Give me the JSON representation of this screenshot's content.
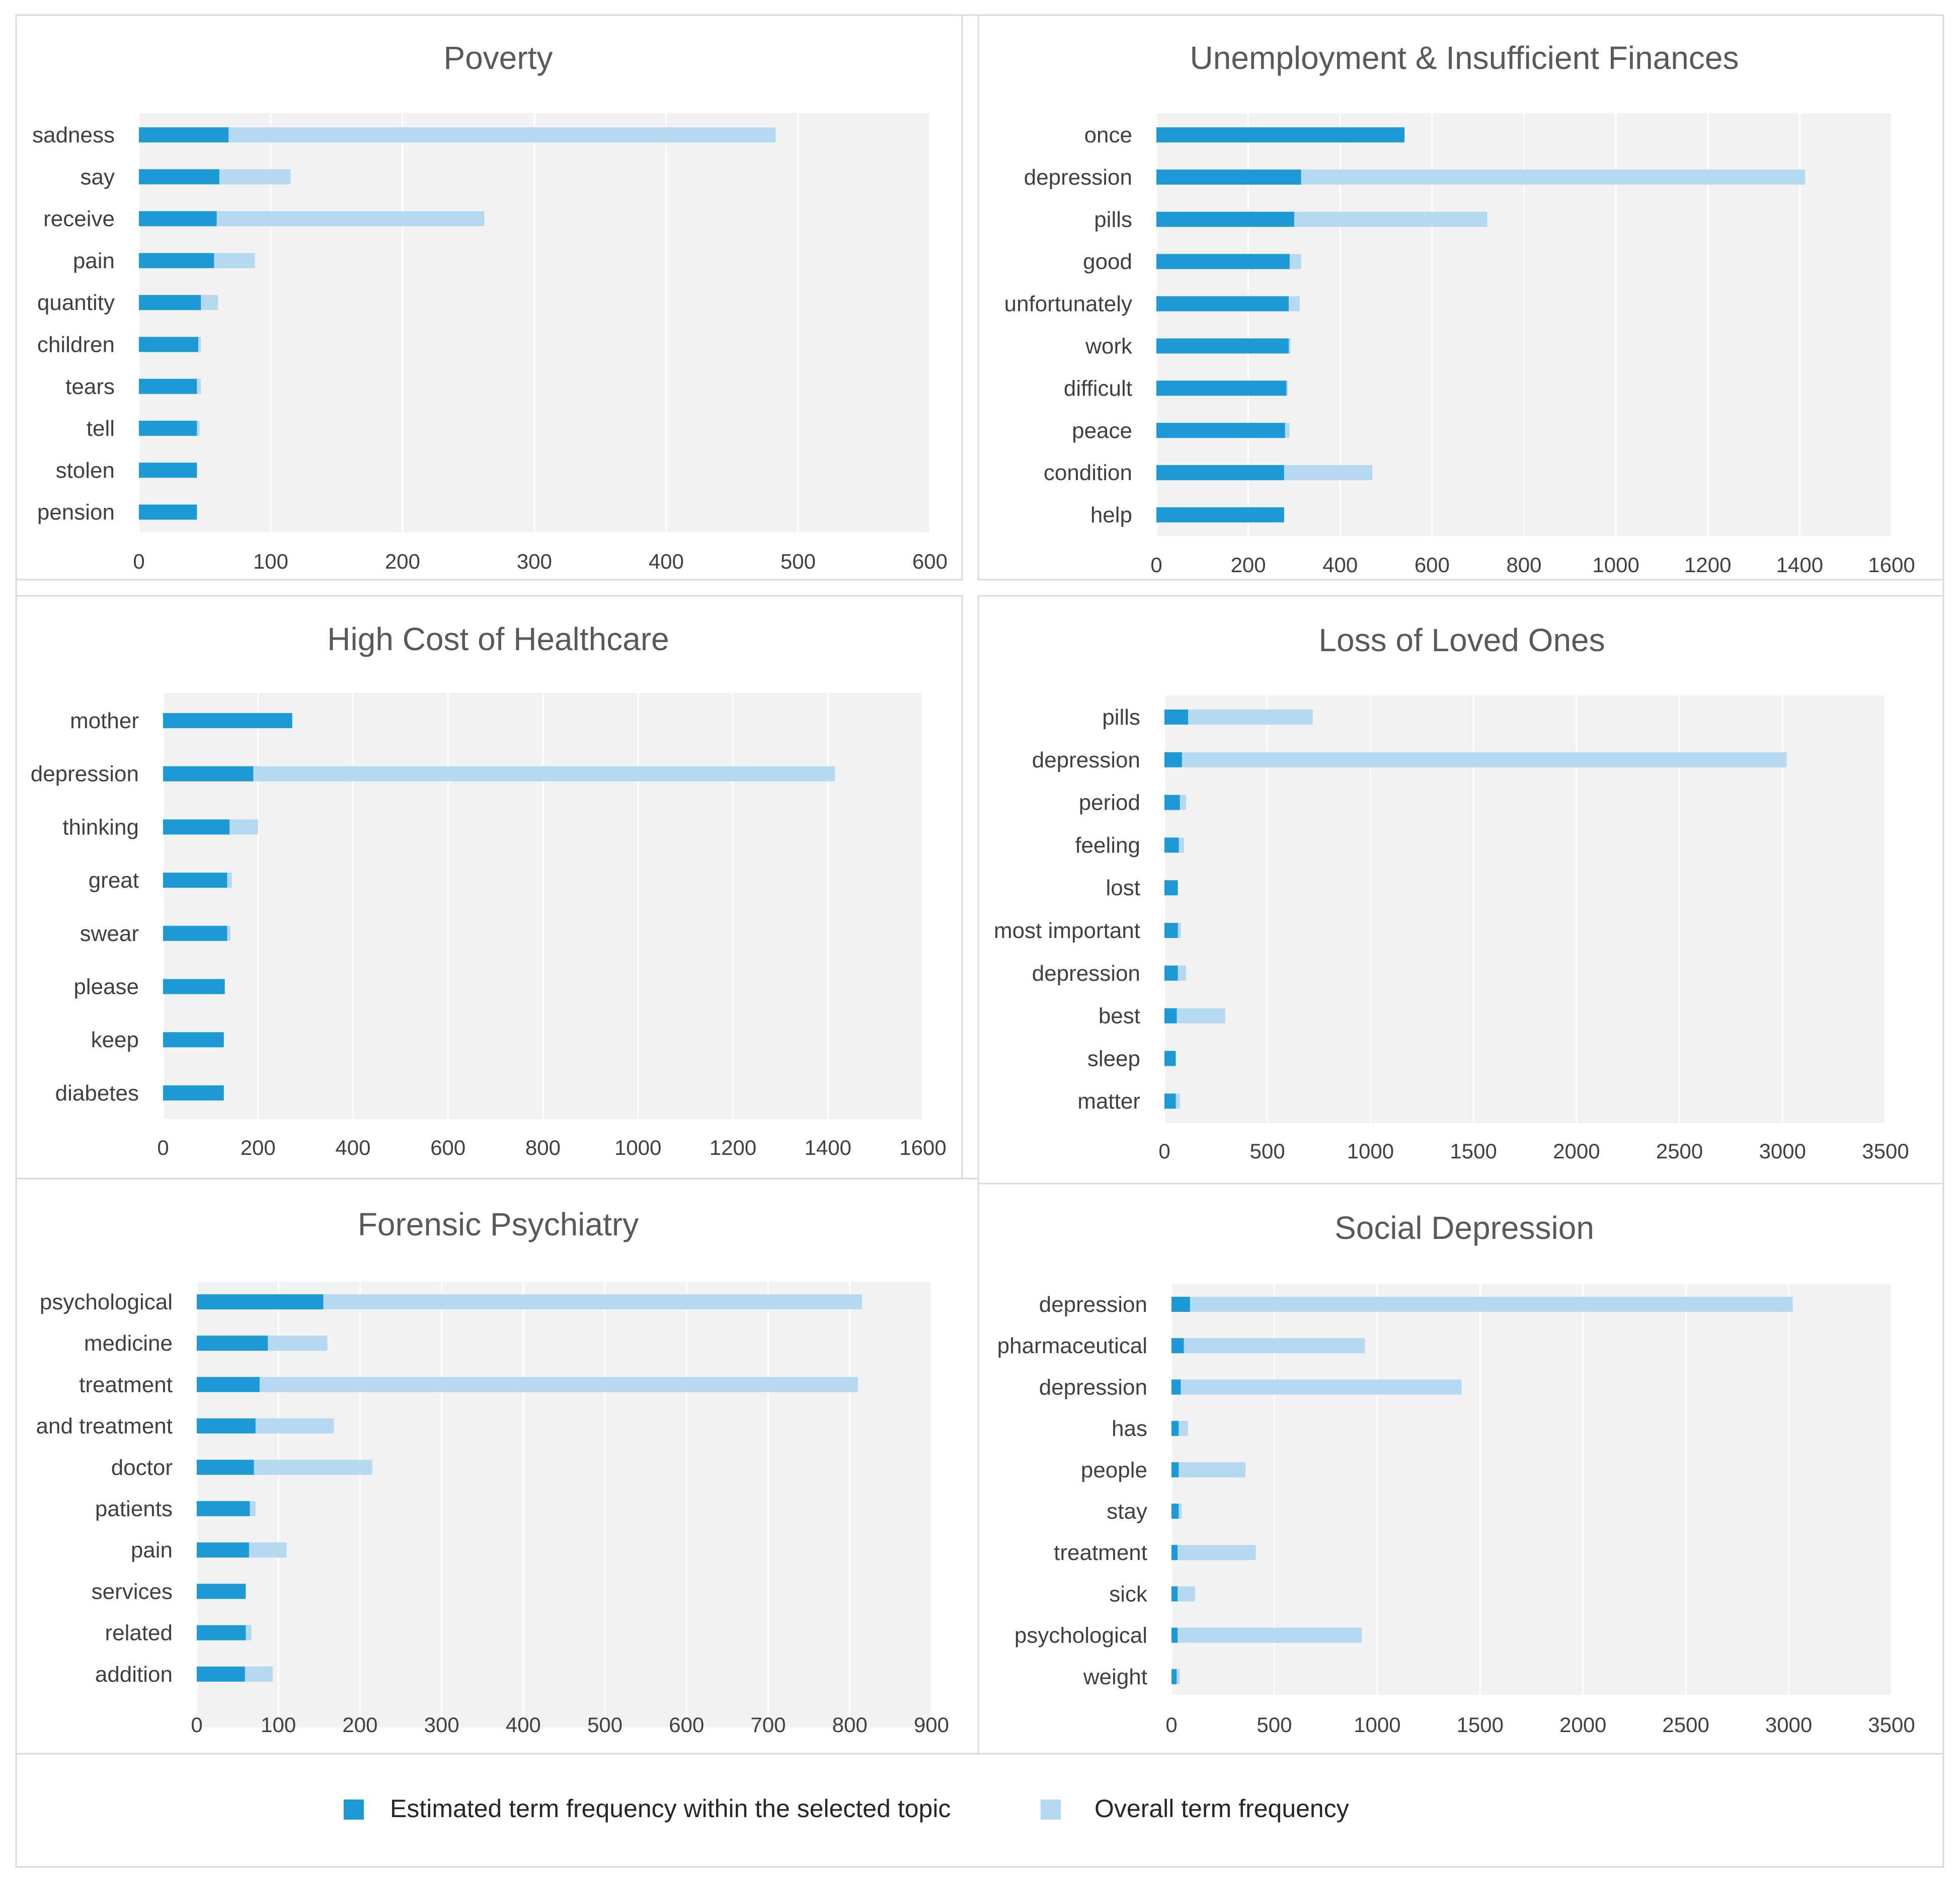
{
  "colors": {
    "topic": "#1d9ad6",
    "overall": "#b5d9f0",
    "plot_bg": "#f2f2f2",
    "grid": "#ffffff",
    "border": "#d9d9d9",
    "title": "#595959",
    "label": "#404040"
  },
  "legend": {
    "topic_label": "Estimated term frequency within the selected topic",
    "overall_label": "Overall term frequency"
  },
  "chart_data": [
    {
      "type": "bar",
      "orientation": "horizontal",
      "title": "Poverty",
      "categories": [
        "sadness",
        "say",
        "receive",
        "pain",
        "quantity",
        "children",
        "tears",
        "tell",
        "stolen",
        "pension"
      ],
      "series": [
        {
          "name": "Estimated term frequency within the selected topic",
          "values": [
            68,
            61,
            59,
            57,
            47,
            45,
            44,
            44,
            44,
            44
          ]
        },
        {
          "name": "Overall term frequency",
          "values": [
            483,
            115,
            262,
            88,
            60,
            47,
            47,
            46,
            44,
            44
          ]
        }
      ],
      "xlim": [
        0,
        600
      ],
      "xticks": [
        0,
        100,
        200,
        300,
        400,
        500,
        600
      ]
    },
    {
      "type": "bar",
      "orientation": "horizontal",
      "title": "Unemployment & Insufficient Finances",
      "categories": [
        "once",
        "depression",
        "pills",
        "good",
        "unfortunately",
        "work",
        "difficult",
        "peace",
        "condition",
        "help"
      ],
      "series": [
        {
          "name": "Estimated term frequency within the selected topic",
          "values": [
            540,
            315,
            300,
            290,
            288,
            288,
            283,
            280,
            278,
            278
          ]
        },
        {
          "name": "Overall term frequency",
          "values": [
            540,
            1412,
            720,
            315,
            312,
            292,
            286,
            290,
            470,
            278
          ]
        }
      ],
      "xlim": [
        0,
        1600
      ],
      "xticks": [
        0,
        200,
        400,
        600,
        800,
        1000,
        1200,
        1400,
        1600
      ]
    },
    {
      "type": "bar",
      "orientation": "horizontal",
      "title": "High Cost of Healthcare",
      "categories": [
        "mother",
        "depression",
        "thinking",
        "great",
        "swear",
        "please",
        "keep",
        "diabetes"
      ],
      "series": [
        {
          "name": "Estimated term frequency within the selected topic",
          "values": [
            272,
            190,
            140,
            135,
            135,
            130,
            128,
            128
          ]
        },
        {
          "name": "Overall term frequency",
          "values": [
            272,
            1415,
            200,
            145,
            142,
            130,
            128,
            128
          ]
        }
      ],
      "xlim": [
        0,
        1600
      ],
      "xticks": [
        0,
        200,
        400,
        600,
        800,
        1000,
        1200,
        1400,
        1600
      ]
    },
    {
      "type": "bar",
      "orientation": "horizontal",
      "title": "Loss of Loved Ones",
      "categories": [
        "pills",
        "depression",
        "period",
        "feeling",
        "lost",
        "most important",
        "depression",
        "best",
        "sleep",
        "matter"
      ],
      "series": [
        {
          "name": "Estimated term frequency within the selected topic",
          "values": [
            115,
            85,
            75,
            70,
            65,
            65,
            65,
            60,
            55,
            55
          ]
        },
        {
          "name": "Overall term frequency",
          "values": [
            720,
            3020,
            105,
            95,
            65,
            80,
            105,
            295,
            55,
            75
          ]
        }
      ],
      "xlim": [
        0,
        3500
      ],
      "xticks": [
        0,
        500,
        1000,
        1500,
        2000,
        2500,
        3000,
        3500
      ]
    },
    {
      "type": "bar",
      "orientation": "horizontal",
      "title": "Forensic Psychiatry",
      "categories": [
        "psychological",
        "medicine",
        "treatment",
        "and treatment",
        "doctor",
        "patients",
        "pain",
        "services",
        "related",
        "addition"
      ],
      "series": [
        {
          "name": "Estimated term frequency within the selected topic",
          "values": [
            155,
            87,
            77,
            72,
            70,
            65,
            64,
            60,
            60,
            59
          ]
        },
        {
          "name": "Overall term frequency",
          "values": [
            815,
            160,
            810,
            168,
            215,
            72,
            110,
            60,
            67,
            93
          ]
        }
      ],
      "xlim": [
        0,
        900
      ],
      "xticks": [
        0,
        100,
        200,
        300,
        400,
        500,
        600,
        700,
        800,
        900
      ]
    },
    {
      "type": "bar",
      "orientation": "horizontal",
      "title": "Social Depression",
      "categories": [
        "depression",
        "pharmaceutical",
        "depression",
        "has",
        "people",
        "stay",
        "treatment",
        "sick",
        "psychological",
        "weight"
      ],
      "series": [
        {
          "name": "Estimated term frequency within the selected topic",
          "values": [
            90,
            60,
            45,
            35,
            35,
            35,
            30,
            30,
            30,
            25
          ]
        },
        {
          "name": "Overall term frequency",
          "values": [
            3020,
            940,
            1410,
            80,
            360,
            50,
            410,
            115,
            925,
            40
          ]
        }
      ],
      "xlim": [
        0,
        3500
      ],
      "xticks": [
        0,
        500,
        1000,
        1500,
        2000,
        2500,
        3000,
        3500
      ]
    }
  ]
}
